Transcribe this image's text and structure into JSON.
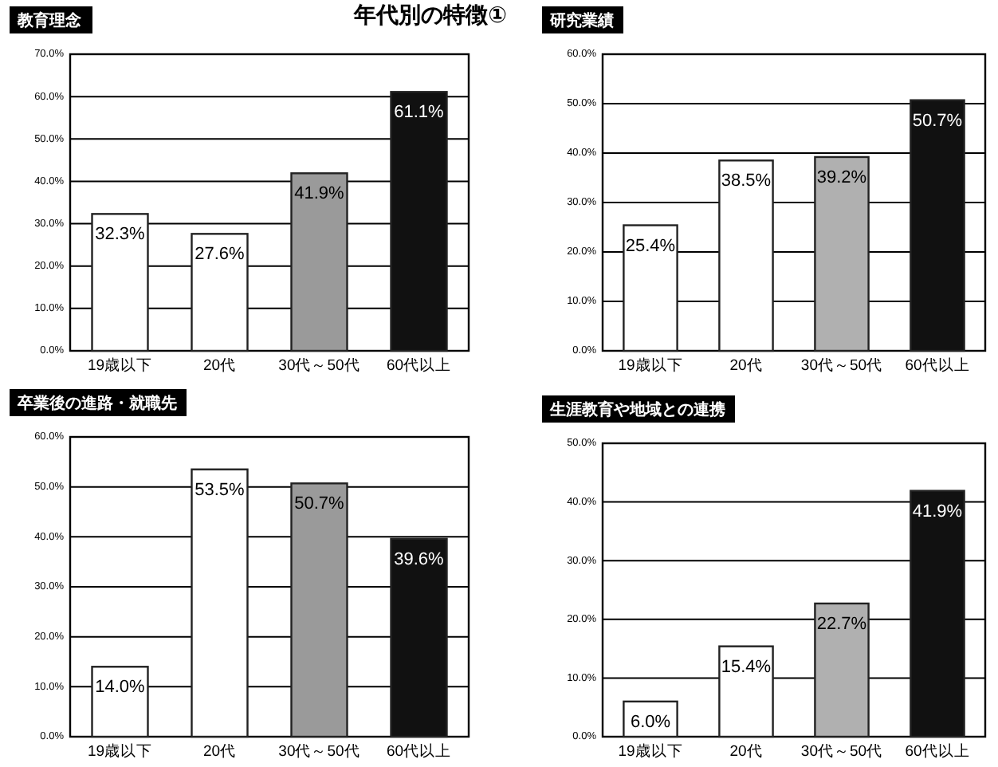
{
  "chart_data": [
    {
      "type": "bar",
      "title": "教育理念",
      "annotations": [
        "年代別の特徴①"
      ],
      "categories": [
        "19歳以下",
        "20代",
        "30代～50代",
        "60代以上"
      ],
      "values": [
        32.3,
        27.6,
        41.9,
        61.1
      ],
      "value_labels": [
        "32.3%",
        "27.6%",
        "41.9%",
        "61.1%"
      ],
      "colors": [
        "#ffffff",
        "#ffffff",
        "#9a9a9a",
        "#111111"
      ],
      "ylim": [
        0,
        70
      ],
      "yticks": [
        {
          "value": 0,
          "label": "0.0%"
        },
        {
          "value": 10,
          "label": "10.0%"
        },
        {
          "value": 20,
          "label": "20.0%"
        },
        {
          "value": 30,
          "label": "30.0%"
        },
        {
          "value": 40,
          "label": "40.0%"
        },
        {
          "value": 50,
          "label": "50.0%"
        },
        {
          "value": 60,
          "label": "60.0%"
        },
        {
          "value": 70,
          "label": "70.0%"
        }
      ],
      "grid": "y"
    },
    {
      "type": "bar",
      "title": "研究業績",
      "categories": [
        "19歳以下",
        "20代",
        "30代～50代",
        "60代以上"
      ],
      "values": [
        25.4,
        38.5,
        39.2,
        50.7
      ],
      "value_labels": [
        "25.4%",
        "38.5%",
        "39.2%",
        "50.7%"
      ],
      "colors": [
        "#ffffff",
        "#ffffff",
        "#b0b0b0",
        "#111111"
      ],
      "ylim": [
        0,
        60
      ],
      "yticks": [
        {
          "value": 0,
          "label": "0.0%"
        },
        {
          "value": 10,
          "label": "10.0%"
        },
        {
          "value": 20,
          "label": "20.0%"
        },
        {
          "value": 30,
          "label": "30.0%"
        },
        {
          "value": 40,
          "label": "40.0%"
        },
        {
          "value": 50,
          "label": "50.0%"
        },
        {
          "value": 60,
          "label": "60.0%"
        }
      ],
      "grid": "y"
    },
    {
      "type": "bar",
      "title": "卒業後の進路・就職先",
      "categories": [
        "19歳以下",
        "20代",
        "30代～50代",
        "60代以上"
      ],
      "values": [
        14.0,
        53.5,
        50.7,
        39.6
      ],
      "value_labels": [
        "14.0%",
        "53.5%",
        "50.7%",
        "39.6%"
      ],
      "colors": [
        "#ffffff",
        "#ffffff",
        "#9a9a9a",
        "#111111"
      ],
      "ylim": [
        0,
        60
      ],
      "yticks": [
        {
          "value": 0,
          "label": "0.0%"
        },
        {
          "value": 10,
          "label": "10.0%"
        },
        {
          "value": 20,
          "label": "20.0%"
        },
        {
          "value": 30,
          "label": "30.0%"
        },
        {
          "value": 40,
          "label": "40.0%"
        },
        {
          "value": 50,
          "label": "50.0%"
        },
        {
          "value": 60,
          "label": "60.0%"
        }
      ],
      "grid": "y"
    },
    {
      "type": "bar",
      "title": "生涯教育や地域との連携",
      "categories": [
        "19歳以下",
        "20代",
        "30代～50代",
        "60代以上"
      ],
      "values": [
        6.0,
        15.4,
        22.7,
        41.9
      ],
      "value_labels": [
        "6.0%",
        "15.4%",
        "22.7%",
        "41.9%"
      ],
      "colors": [
        "#ffffff",
        "#ffffff",
        "#b0b0b0",
        "#111111"
      ],
      "ylim": [
        0,
        50
      ],
      "yticks": [
        {
          "value": 0,
          "label": "0.0%"
        },
        {
          "value": 10,
          "label": "10.0%"
        },
        {
          "value": 20,
          "label": "20.0%"
        },
        {
          "value": 30,
          "label": "30.0%"
        },
        {
          "value": 40,
          "label": "40.0%"
        },
        {
          "value": 50,
          "label": "50.0%"
        }
      ],
      "grid": "y"
    }
  ]
}
